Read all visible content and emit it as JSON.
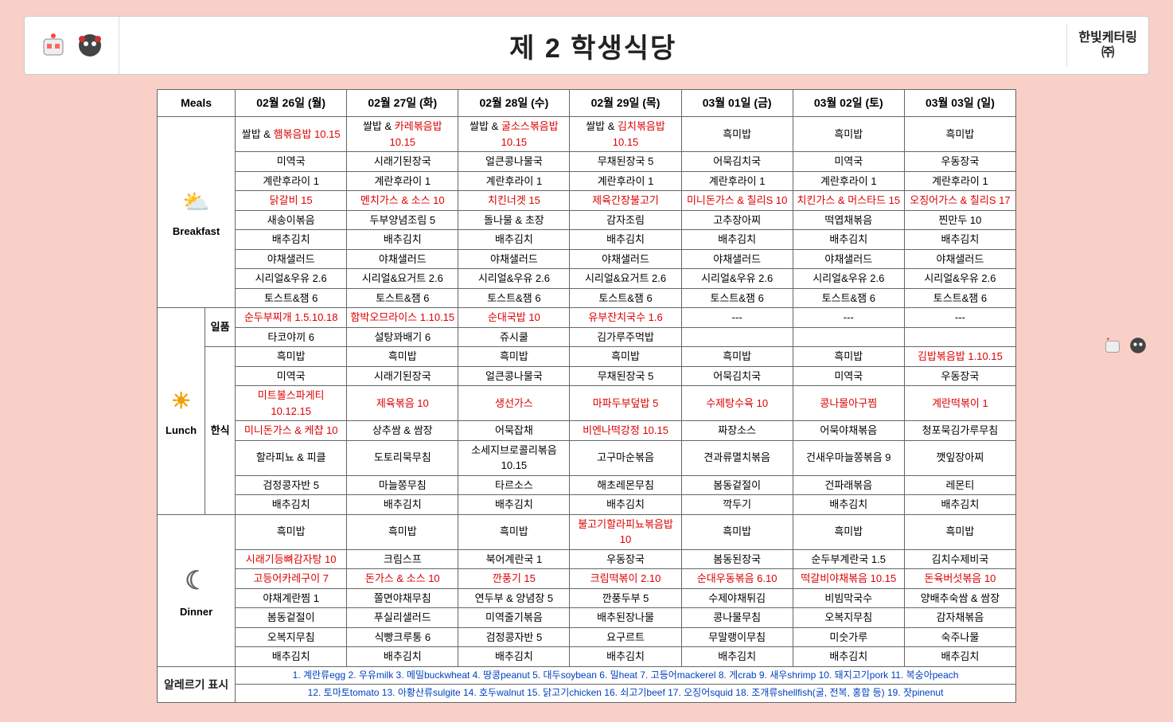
{
  "header": {
    "title": "제 2 학생식당",
    "brand_line1": "한빛케터링",
    "brand_line2": "㈜"
  },
  "columns": {
    "meals_label": "Meals",
    "dates": [
      "02월 26일 (월)",
      "02월 27일 (화)",
      "02월 28일 (수)",
      "02월 29일 (목)",
      "03월 01일 (금)",
      "03월 02일 (토)",
      "03월 03일 (일)"
    ]
  },
  "breakfast": {
    "label": "Breakfast",
    "rows": [
      [
        {
          "t": "쌀밥 & ",
          "r": "햄볶음밥 10.15"
        },
        {
          "t": "쌀밥 & ",
          "r": "카레볶음밥 10.15"
        },
        {
          "t": "쌀밥 & ",
          "r": "굴소스볶음밥 10.15"
        },
        {
          "t": "쌀밥 & ",
          "r": "김치볶음밥 10.15"
        },
        {
          "t": "흑미밥"
        },
        {
          "t": "흑미밥"
        },
        {
          "t": "흑미밥"
        }
      ],
      [
        {
          "t": "미역국"
        },
        {
          "t": "시래기된장국"
        },
        {
          "t": "얼큰콩나물국"
        },
        {
          "t": "무채된장국 5"
        },
        {
          "t": "어묵김치국"
        },
        {
          "t": "미역국"
        },
        {
          "t": "우동장국"
        }
      ],
      [
        {
          "t": "계란후라이 1"
        },
        {
          "t": "계란후라이 1"
        },
        {
          "t": "계란후라이 1"
        },
        {
          "t": "계란후라이 1"
        },
        {
          "t": "계란후라이 1"
        },
        {
          "t": "계란후라이 1"
        },
        {
          "t": "계란후라이 1"
        }
      ],
      [
        {
          "r": "닭갈비 15"
        },
        {
          "r": "멘치가스 & 소스 10"
        },
        {
          "r": "치킨너겟 15"
        },
        {
          "r": "제육간장불고기"
        },
        {
          "r": "미니돈가스 & 칠리S 10"
        },
        {
          "r": "치킨가스 & 머스타드 15"
        },
        {
          "r": "오징어가스 & 칠리S 17"
        }
      ],
      [
        {
          "t": "새송이볶음"
        },
        {
          "t": "두부양념조림 5"
        },
        {
          "t": "돌나물 & 초장"
        },
        {
          "t": "감자조림"
        },
        {
          "t": "고추장아찌"
        },
        {
          "t": "떡엽채볶음"
        },
        {
          "t": "찐만두 10"
        }
      ],
      [
        {
          "t": "배추김치"
        },
        {
          "t": "배추김치"
        },
        {
          "t": "배추김치"
        },
        {
          "t": "배추김치"
        },
        {
          "t": "배추김치"
        },
        {
          "t": "배추김치"
        },
        {
          "t": "배추김치"
        }
      ],
      [
        {
          "t": "야채샐러드"
        },
        {
          "t": "야채샐러드"
        },
        {
          "t": "야채샐러드"
        },
        {
          "t": "야채샐러드"
        },
        {
          "t": "야채샐러드"
        },
        {
          "t": "야채샐러드"
        },
        {
          "t": "야채샐러드"
        }
      ],
      [
        {
          "t": "시리얼&우유 2.6"
        },
        {
          "t": "시리얼&요거트 2.6"
        },
        {
          "t": "시리얼&우유 2.6"
        },
        {
          "t": "시리얼&요거트 2.6"
        },
        {
          "t": "시리얼&우유 2.6"
        },
        {
          "t": "시리얼&우유 2.6"
        },
        {
          "t": "시리얼&우유 2.6"
        }
      ],
      [
        {
          "t": "토스트&잼 6"
        },
        {
          "t": "토스트&잼 6"
        },
        {
          "t": "토스트&잼 6"
        },
        {
          "t": "토스트&잼 6"
        },
        {
          "t": "토스트&잼 6"
        },
        {
          "t": "토스트&잼 6"
        },
        {
          "t": "토스트&잼 6"
        }
      ]
    ]
  },
  "lunch": {
    "label": "Lunch",
    "sub1_label": "일품",
    "sub2_label": "한식",
    "ilpum_rows": [
      [
        {
          "r": "순두부찌개 1.5.10.18"
        },
        {
          "r": "함박오므라이스 1.10.15"
        },
        {
          "r": "순대국밥 10"
        },
        {
          "r": "유부잔치국수 1.6"
        },
        {
          "t": "---"
        },
        {
          "t": "---"
        },
        {
          "t": "---"
        }
      ],
      [
        {
          "t": "타코야끼 6"
        },
        {
          "t": "설탕꽈배기 6"
        },
        {
          "t": "쥬시쿨"
        },
        {
          "t": "김가루주먹밥"
        },
        {
          "t": ""
        },
        {
          "t": ""
        },
        {
          "t": ""
        }
      ]
    ],
    "hansik_rows": [
      [
        {
          "t": "흑미밥"
        },
        {
          "t": "흑미밥"
        },
        {
          "t": "흑미밥"
        },
        {
          "t": "흑미밥"
        },
        {
          "t": "흑미밥"
        },
        {
          "t": "흑미밥"
        },
        {
          "r": "김밥볶음밥 1.10.15"
        }
      ],
      [
        {
          "t": "미역국"
        },
        {
          "t": "시래기된장국"
        },
        {
          "t": "얼큰콩나물국"
        },
        {
          "t": "무채된장국 5"
        },
        {
          "t": "어묵김치국"
        },
        {
          "t": "미역국"
        },
        {
          "t": "우동장국"
        }
      ],
      [
        {
          "r": "미트볼스파게티 10.12.15"
        },
        {
          "r": "제육볶음 10"
        },
        {
          "r": "생선가스"
        },
        {
          "r": "마파두부덮밥 5"
        },
        {
          "r": "수제탕수육 10"
        },
        {
          "r": "콩나물아구찜"
        },
        {
          "r": "계란떡볶이 1"
        }
      ],
      [
        {
          "r": "미니돈가스 & 케챱 10"
        },
        {
          "t": "상추쌈 & 쌈장"
        },
        {
          "t": "어묵잡채"
        },
        {
          "r": "비엔나떡강정 10.15"
        },
        {
          "t": "짜장소스"
        },
        {
          "t": "어묵야채볶음"
        },
        {
          "t": "청포묵김가루무침"
        }
      ],
      [
        {
          "t": "할라피뇨 & 피클"
        },
        {
          "t": "도토리묵무침"
        },
        {
          "t": "소세지브로콜리볶음 10.15"
        },
        {
          "t": "고구마순볶음"
        },
        {
          "t": "견과류멸치볶음"
        },
        {
          "t": "건새우마늘쫑볶음 9"
        },
        {
          "t": "깻잎장아찌"
        }
      ],
      [
        {
          "t": "검정콩자반 5"
        },
        {
          "t": "마늘쫑무침"
        },
        {
          "t": "타르소스"
        },
        {
          "t": "해초레몬무침"
        },
        {
          "t": "봄동겉절이"
        },
        {
          "t": "건파래볶음"
        },
        {
          "t": "레몬티"
        }
      ],
      [
        {
          "t": "배추김치"
        },
        {
          "t": "배추김치"
        },
        {
          "t": "배추김치"
        },
        {
          "t": "배추김치"
        },
        {
          "t": "깍두기"
        },
        {
          "t": "배추김치"
        },
        {
          "t": "배추김치"
        }
      ]
    ]
  },
  "dinner": {
    "label": "Dinner",
    "rows": [
      [
        {
          "t": "흑미밥"
        },
        {
          "t": "흑미밥"
        },
        {
          "t": "흑미밥"
        },
        {
          "r": "불고기할라피뇨볶음밥 10"
        },
        {
          "t": "흑미밥"
        },
        {
          "t": "흑미밥"
        },
        {
          "t": "흑미밥"
        }
      ],
      [
        {
          "r": "시래기등뼈감자탕 10"
        },
        {
          "t": "크림스프"
        },
        {
          "t": "북어계란국 1"
        },
        {
          "t": "우동장국"
        },
        {
          "t": "봄동된장국"
        },
        {
          "t": "순두부계란국 1.5"
        },
        {
          "t": "김치수제비국"
        }
      ],
      [
        {
          "r": "고등어카레구이 7"
        },
        {
          "r": "돈가스 & 소스 10"
        },
        {
          "r": "깐풍기 15"
        },
        {
          "r": "크림떡볶이 2.10"
        },
        {
          "r": "순대우동볶음 6.10"
        },
        {
          "r": "떡갈비야채볶음 10.15"
        },
        {
          "r": "돈육버섯볶음 10"
        }
      ],
      [
        {
          "t": "야채계란찜 1"
        },
        {
          "t": "쫄면야채무침"
        },
        {
          "t": "연두부 & 양념장 5"
        },
        {
          "t": "깐풍두부 5"
        },
        {
          "t": "수제야채튀김"
        },
        {
          "t": "비빔막국수"
        },
        {
          "t": "양배추숙쌈 & 쌈장"
        }
      ],
      [
        {
          "t": "봄동겉절이"
        },
        {
          "t": "푸실리샐러드"
        },
        {
          "t": "미역줄기볶음"
        },
        {
          "t": "배추된장나물"
        },
        {
          "t": "콩나물무침"
        },
        {
          "t": "오복지무침"
        },
        {
          "t": "감자채볶음"
        }
      ],
      [
        {
          "t": "오복지무침"
        },
        {
          "t": "식빵크루통 6"
        },
        {
          "t": "검정콩자반 5"
        },
        {
          "t": "요구르트"
        },
        {
          "t": "무말랭이무침"
        },
        {
          "t": "미숫가루"
        },
        {
          "t": "숙주나물"
        }
      ],
      [
        {
          "t": "배추김치"
        },
        {
          "t": "배추김치"
        },
        {
          "t": "배추김치"
        },
        {
          "t": "배추김치"
        },
        {
          "t": "배추김치"
        },
        {
          "t": "배추김치"
        },
        {
          "t": "배추김치"
        }
      ]
    ]
  },
  "allergen": {
    "label": "알레르기 표시",
    "line1": "1. 계란류egg 2. 우유milk 3. 메밀buckwheat 4. 땅콩peanut 5. 대두soybean 6. 밀heat 7. 고등어mackerel 8. 게crab 9. 새우shrimp 10. 돼지고기pork 11. 복숭아peach",
    "line2": "12. 토마토tomato 13. 아황산류sulgite 14. 호두walnut 15. 닭고기chicken 16. 쇠고기beef 17. 오징어squid 18. 조개류shellfish(굴, 전복, 홍합 등) 19. 잣pinenut"
  },
  "colors": {
    "page_bg": "#f8d0c8",
    "accent_red": "#d00",
    "allergen_blue": "#0040c0",
    "border": "#666"
  }
}
